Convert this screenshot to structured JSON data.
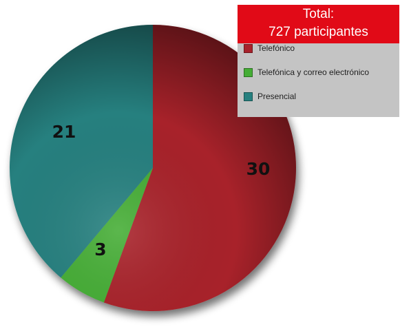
{
  "chart_data": {
    "type": "pie",
    "categories": [
      "Telefónico",
      "Telefónica y correo electrónico",
      "Presencial"
    ],
    "values": [
      30,
      3,
      21
    ],
    "colors": [
      "#a8222b",
      "#45ad35",
      "#26807f"
    ],
    "legend_title_line1": "Total:",
    "legend_title_line2": "727 participantes",
    "legend_placement": "top-right",
    "start_angle_deg": 0,
    "direction": "clockwise"
  }
}
